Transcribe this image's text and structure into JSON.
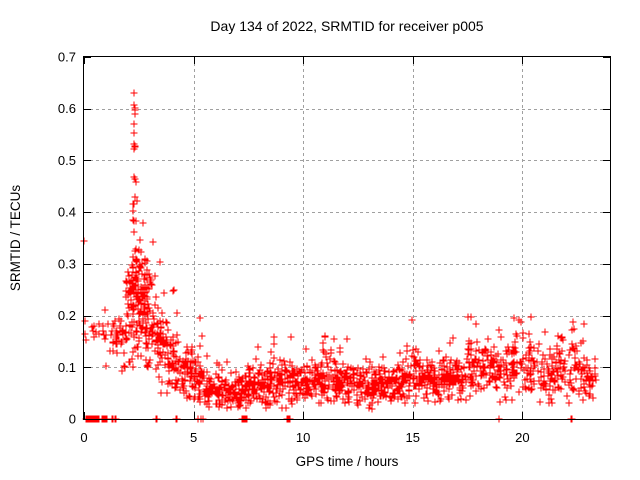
{
  "title": "Day 134 of 2022, SRMTID for receiver p005",
  "colors": {
    "marker": "#ff0000",
    "grid": "#a0a0a0",
    "border": "#000000",
    "background": "#ffffff",
    "text": "#000000"
  },
  "chart_data": {
    "type": "scatter",
    "marker": "plus",
    "title": "Day 134 of 2022, SRMTID for receiver p005",
    "xlabel": "GPS time / hours",
    "ylabel": "SRMTID / TECUs",
    "xlim": [
      0,
      24
    ],
    "ylim": [
      0,
      0.7
    ],
    "xticks": [
      {
        "v": 0,
        "label": "0"
      },
      {
        "v": 5,
        "label": "5"
      },
      {
        "v": 10,
        "label": "10"
      },
      {
        "v": 15,
        "label": "15"
      },
      {
        "v": 20,
        "label": "20"
      }
    ],
    "yticks": [
      {
        "v": 0,
        "label": "0"
      },
      {
        "v": 0.1,
        "label": "0.1"
      },
      {
        "v": 0.2,
        "label": "0.2"
      },
      {
        "v": 0.3,
        "label": "0.3"
      },
      {
        "v": 0.4,
        "label": "0.4"
      },
      {
        "v": 0.5,
        "label": "0.5"
      },
      {
        "v": 0.6,
        "label": "0.6"
      },
      {
        "v": 0.7,
        "label": "0.7"
      }
    ],
    "grid": true,
    "legend": "none",
    "series_name": "SRMTID",
    "outlier_points": [
      [
        0.02,
        0.345
      ],
      [
        0.05,
        0.19
      ],
      [
        0.04,
        0.165
      ],
      [
        0.08,
        0.152
      ],
      [
        2.28,
        0.63
      ],
      [
        2.3,
        0.607
      ],
      [
        2.31,
        0.601
      ],
      [
        2.33,
        0.598
      ],
      [
        2.32,
        0.59
      ],
      [
        2.29,
        0.571
      ],
      [
        2.3,
        0.554
      ],
      [
        2.28,
        0.531
      ],
      [
        2.31,
        0.528
      ],
      [
        2.33,
        0.526
      ],
      [
        2.3,
        0.523
      ],
      [
        2.29,
        0.468
      ],
      [
        2.32,
        0.465
      ],
      [
        2.36,
        0.458
      ],
      [
        2.31,
        0.43
      ],
      [
        2.42,
        0.422
      ],
      [
        2.26,
        0.415
      ],
      [
        14.95,
        0.192
      ]
    ],
    "zero_points": [
      [
        0.08,
        3
      ],
      [
        0.17,
        4
      ],
      [
        0.28,
        3
      ],
      [
        0.38,
        4
      ],
      [
        0.5,
        4
      ],
      [
        0.6,
        3
      ],
      [
        0.8,
        4
      ],
      [
        0.92,
        3
      ],
      [
        1.02,
        2
      ],
      [
        1.3,
        2
      ],
      [
        1.43,
        2
      ],
      [
        3.3,
        2
      ],
      [
        4.22,
        2
      ],
      [
        5.22,
        1
      ],
      [
        5.35,
        1
      ],
      [
        5.45,
        1
      ],
      [
        7.2,
        3
      ],
      [
        7.32,
        3
      ],
      [
        7.42,
        2
      ],
      [
        9.27,
        3
      ],
      [
        9.38,
        2
      ],
      [
        18.92,
        2
      ],
      [
        22.22,
        2
      ]
    ],
    "clusters": [
      {
        "x0": 0.35,
        "x1": 0.9,
        "n": 10,
        "ymin": 0.15,
        "ymax": 0.21,
        "mode": 0.18
      },
      {
        "x0": 0.9,
        "x1": 1.4,
        "n": 14,
        "ymin": 0.1,
        "ymax": 0.22,
        "mode": 0.16
      },
      {
        "x0": 1.4,
        "x1": 1.9,
        "n": 28,
        "ymin": 0.09,
        "ymax": 0.23,
        "mode": 0.16
      },
      {
        "x0": 1.9,
        "x1": 2.15,
        "n": 30,
        "ymin": 0.1,
        "ymax": 0.35,
        "mode": 0.2
      },
      {
        "x0": 2.15,
        "x1": 2.5,
        "n": 75,
        "ymin": 0.1,
        "ymax": 0.43,
        "mode": 0.26
      },
      {
        "x0": 2.5,
        "x1": 2.8,
        "n": 60,
        "ymin": 0.1,
        "ymax": 0.4,
        "mode": 0.23
      },
      {
        "x0": 2.8,
        "x1": 3.3,
        "n": 60,
        "ymin": 0.08,
        "ymax": 0.36,
        "mode": 0.2
      },
      {
        "x0": 3.3,
        "x1": 3.8,
        "n": 52,
        "ymin": 0.05,
        "ymax": 0.33,
        "mode": 0.15
      },
      {
        "x0": 3.8,
        "x1": 4.3,
        "n": 52,
        "ymin": 0.04,
        "ymax": 0.25,
        "mode": 0.11
      },
      {
        "x0": 4.3,
        "x1": 5.0,
        "n": 55,
        "ymin": 0.04,
        "ymax": 0.2,
        "mode": 0.095
      },
      {
        "x0": 5.0,
        "x1": 5.5,
        "n": 40,
        "ymin": 0.03,
        "ymax": 0.2,
        "mode": 0.08
      },
      {
        "x0": 5.5,
        "x1": 6.5,
        "n": 75,
        "ymin": 0.02,
        "ymax": 0.13,
        "mode": 0.06
      },
      {
        "x0": 6.5,
        "x1": 7.5,
        "n": 75,
        "ymin": 0.02,
        "ymax": 0.12,
        "mode": 0.055
      },
      {
        "x0": 7.5,
        "x1": 8.5,
        "n": 78,
        "ymin": 0.02,
        "ymax": 0.14,
        "mode": 0.065
      },
      {
        "x0": 8.5,
        "x1": 9.5,
        "n": 78,
        "ymin": 0.02,
        "ymax": 0.16,
        "mode": 0.075
      },
      {
        "x0": 9.5,
        "x1": 10.5,
        "n": 78,
        "ymin": 0.02,
        "ymax": 0.14,
        "mode": 0.07
      },
      {
        "x0": 10.5,
        "x1": 11.5,
        "n": 80,
        "ymin": 0.03,
        "ymax": 0.17,
        "mode": 0.08
      },
      {
        "x0": 11.5,
        "x1": 12.5,
        "n": 80,
        "ymin": 0.03,
        "ymax": 0.16,
        "mode": 0.075
      },
      {
        "x0": 12.5,
        "x1": 13.5,
        "n": 80,
        "ymin": 0.02,
        "ymax": 0.13,
        "mode": 0.065
      },
      {
        "x0": 13.5,
        "x1": 14.5,
        "n": 80,
        "ymin": 0.03,
        "ymax": 0.15,
        "mode": 0.07
      },
      {
        "x0": 14.5,
        "x1": 15.5,
        "n": 80,
        "ymin": 0.03,
        "ymax": 0.15,
        "mode": 0.08
      },
      {
        "x0": 15.5,
        "x1": 16.5,
        "n": 80,
        "ymin": 0.03,
        "ymax": 0.14,
        "mode": 0.075
      },
      {
        "x0": 16.5,
        "x1": 17.5,
        "n": 78,
        "ymin": 0.03,
        "ymax": 0.16,
        "mode": 0.08
      },
      {
        "x0": 17.5,
        "x1": 18.5,
        "n": 75,
        "ymin": 0.04,
        "ymax": 0.21,
        "mode": 0.1
      },
      {
        "x0": 18.5,
        "x1": 19.6,
        "n": 72,
        "ymin": 0.03,
        "ymax": 0.2,
        "mode": 0.095
      },
      {
        "x0": 19.6,
        "x1": 20.7,
        "n": 72,
        "ymin": 0.04,
        "ymax": 0.225,
        "mode": 0.11
      },
      {
        "x0": 20.7,
        "x1": 21.7,
        "n": 70,
        "ymin": 0.03,
        "ymax": 0.17,
        "mode": 0.09
      },
      {
        "x0": 21.7,
        "x1": 22.9,
        "n": 70,
        "ymin": 0.03,
        "ymax": 0.19,
        "mode": 0.1
      },
      {
        "x0": 22.9,
        "x1": 23.35,
        "n": 28,
        "ymin": 0.02,
        "ymax": 0.15,
        "mode": 0.075
      }
    ]
  }
}
